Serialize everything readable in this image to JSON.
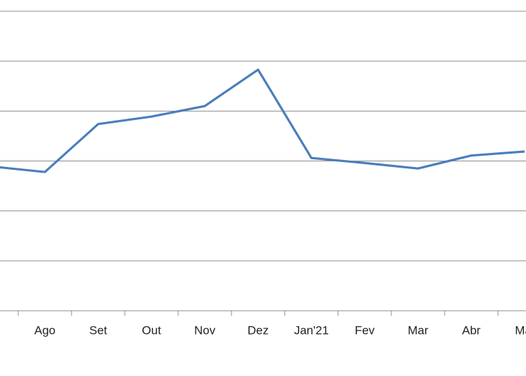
{
  "chart_data": {
    "type": "line",
    "categories": [
      null,
      "Ago",
      "Set",
      "Out",
      "Nov",
      "Dez",
      "Jan'21",
      "Fev",
      "Mar",
      "Abr",
      "Mai"
    ],
    "series": [
      {
        "color": "#4a7ebb",
        "values": [
          2.89,
          2.78,
          3.74,
          3.89,
          4.1,
          4.83,
          3.06,
          2.96,
          2.85,
          3.11,
          3.19
        ]
      }
    ],
    "ylim": [
      0,
      6
    ],
    "yticks": [
      0,
      1,
      2,
      3,
      4,
      5,
      6
    ],
    "grid": true
  }
}
